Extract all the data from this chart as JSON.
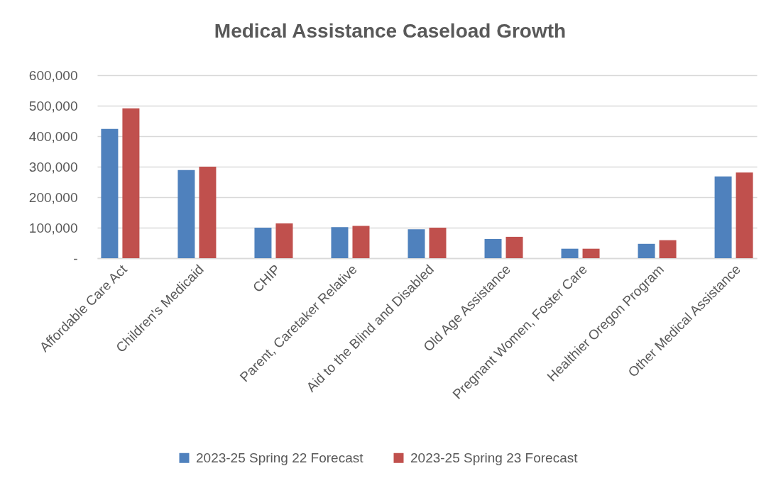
{
  "chart_data": {
    "type": "bar",
    "title": "Medical Assistance Caseload Growth",
    "categories": [
      "Affordable Care Act",
      "Children's Medicaid",
      "CHIP",
      "Parent, Caretaker Relative",
      "Aid to the Blind and Disabled",
      "Old Age Assistance",
      "Pregnant Women, Foster Care",
      "Healthier Oregon Program",
      "Other Medical Assistance"
    ],
    "series": [
      {
        "name": "2023-25 Spring 22 Forecast",
        "color": "#4f81bd",
        "values": [
          424000,
          289000,
          100000,
          102000,
          95000,
          63000,
          31000,
          47000,
          268000
        ]
      },
      {
        "name": "2023-25 Spring 23 Forecast",
        "color": "#c0504d",
        "values": [
          491000,
          300000,
          114000,
          106000,
          100000,
          70000,
          31000,
          59000,
          281000
        ]
      }
    ],
    "ylim": [
      0,
      600000
    ],
    "yticks": [
      {
        "value": 0,
        "label": "-"
      },
      {
        "value": 100000,
        "label": "100,000"
      },
      {
        "value": 200000,
        "label": "200,000"
      },
      {
        "value": 300000,
        "label": "300,000"
      },
      {
        "value": 400000,
        "label": "400,000"
      },
      {
        "value": 500000,
        "label": "500,000"
      },
      {
        "value": 600000,
        "label": "600,000"
      }
    ],
    "grid": "y",
    "legend": "bottom"
  }
}
